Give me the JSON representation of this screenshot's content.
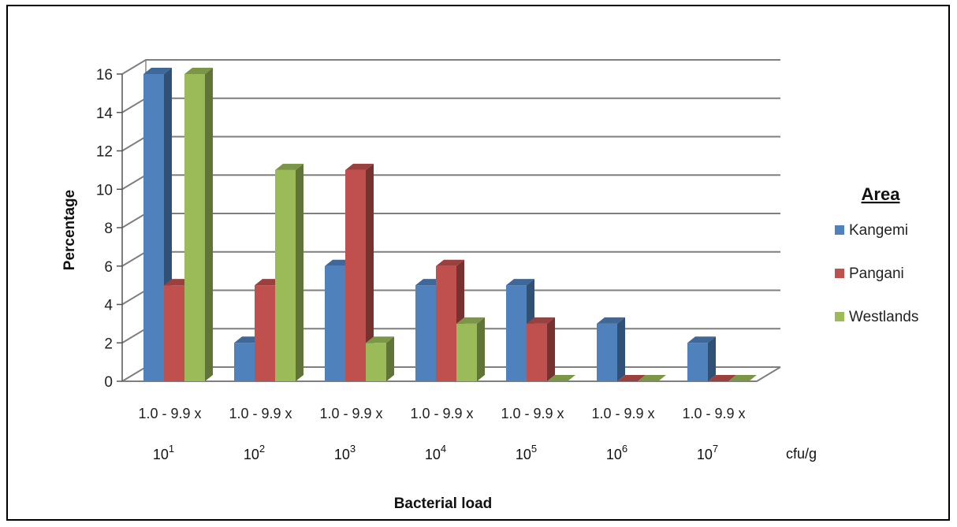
{
  "chart_data": {
    "type": "bar",
    "title": "",
    "xlabel": "Bacterial load",
    "ylabel": "Percentage",
    "unit_label": "cfu/g",
    "ylim": [
      0,
      16
    ],
    "yticks": [
      "0",
      "2",
      "4",
      "6",
      "8",
      "10",
      "12",
      "14",
      "16"
    ],
    "grid": true,
    "legend_title": "Area",
    "legend_position": "right",
    "categories": [
      {
        "range": "1.0 - 9.9 x",
        "base": "10",
        "exp": "1"
      },
      {
        "range": "1.0 - 9.9 x",
        "base": "10",
        "exp": "2"
      },
      {
        "range": "1.0 - 9.9 x",
        "base": "10",
        "exp": "3"
      },
      {
        "range": "1.0 - 9.9 x",
        "base": "10",
        "exp": "4"
      },
      {
        "range": "1.0 - 9.9 x",
        "base": "10",
        "exp": "5"
      },
      {
        "range": "1.0 - 9.9 x",
        "base": "10",
        "exp": "6"
      },
      {
        "range": "1.0 - 9.9 x",
        "base": "10",
        "exp": "7"
      }
    ],
    "series": [
      {
        "name": "Kangemi",
        "color": "#4F81BD",
        "values": [
          16,
          2,
          6,
          5,
          5,
          3,
          2
        ]
      },
      {
        "name": "Pangani",
        "color": "#C0504D",
        "values": [
          5,
          5,
          11,
          6,
          3,
          0,
          0
        ]
      },
      {
        "name": "Westlands",
        "color": "#9BBB59",
        "values": [
          16,
          11,
          2,
          3,
          0,
          0,
          0
        ]
      }
    ]
  }
}
